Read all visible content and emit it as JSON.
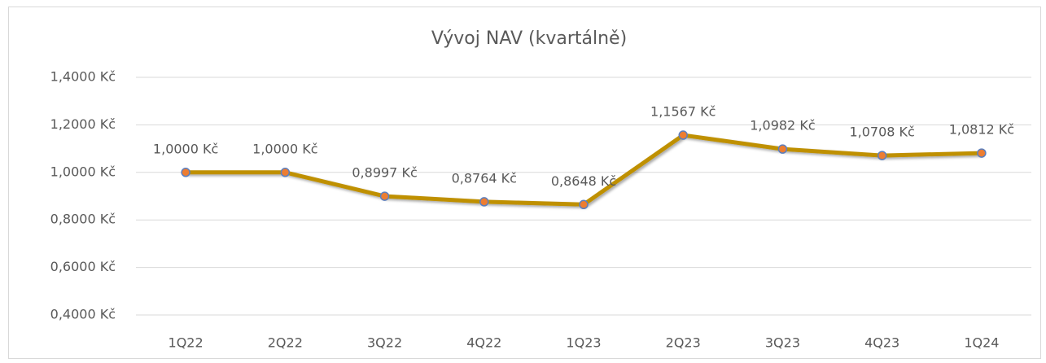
{
  "chart_data": {
    "type": "line",
    "title": "Vývoj NAV (kvartálně)",
    "categories": [
      "1Q22",
      "2Q22",
      "3Q22",
      "4Q22",
      "1Q23",
      "2Q23",
      "3Q23",
      "4Q23",
      "1Q24"
    ],
    "values": [
      1.0,
      1.0,
      0.8997,
      0.8764,
      0.8648,
      1.1567,
      1.0982,
      1.0708,
      1.0812
    ],
    "value_labels": [
      "1,0000 Kč",
      "1,0000 Kč",
      "0,8997 Kč",
      "0,8764 Kč",
      "0,8648 Kč",
      "1,1567 Kč",
      "1,0982 Kč",
      "1,0708 Kč",
      "1,0812 Kč"
    ],
    "color": "#bf9000",
    "marker_color": "#ed7d31",
    "ylim": [
      0.4,
      1.4
    ],
    "yticks": [
      {
        "value": 0.4,
        "label": "0,4000 Kč"
      },
      {
        "value": 0.6,
        "label": "0,6000 Kč"
      },
      {
        "value": 0.8,
        "label": "0,8000 Kč"
      },
      {
        "value": 1.0,
        "label": "1,0000 Kč"
      },
      {
        "value": 1.2,
        "label": "1,2000 Kč"
      },
      {
        "value": 1.4,
        "label": "1,4000 Kč"
      }
    ],
    "grid": true
  }
}
